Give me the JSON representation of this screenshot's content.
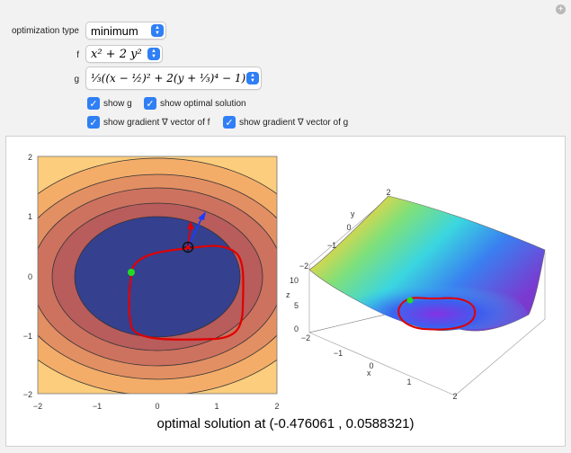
{
  "controls": {
    "optimization_type_label": "optimization type",
    "optimization_type_value": "minimum",
    "f_label": "f",
    "f_value": "x² + 2 y²",
    "g_label": "g",
    "g_value": "⅓((x − ½)² + 2(y + ⅓)⁴ − 1)"
  },
  "checkboxes": [
    {
      "label": "show g",
      "checked": true
    },
    {
      "label": "show optimal solution",
      "checked": true
    },
    {
      "label": "show gradient ∇ vector of f",
      "checked": true
    },
    {
      "label": "show gradient ∇ vector of g",
      "checked": true
    }
  ],
  "contour_plot": {
    "x_ticks": [
      "−2",
      "−1",
      "0",
      "1",
      "2"
    ],
    "y_ticks": [
      "2",
      "1",
      "0",
      "−1",
      "−2"
    ]
  },
  "surface_plot": {
    "x_label": "x",
    "y_label": "y",
    "z_label": "z",
    "x_ticks": [
      "−1",
      "0",
      "1",
      "2"
    ],
    "y_ticks": [
      "2",
      "0",
      "−1",
      "−2"
    ],
    "z_ticks": [
      "10",
      "5",
      "0"
    ]
  },
  "result": "optimal solution at (-0.476061 , 0.0588321)",
  "colors": {
    "accent": "#2f7ff5",
    "constraint_curve": "#e00000",
    "optimum_point": "#22dd22",
    "gradient_arrow": "#1a3cff"
  }
}
